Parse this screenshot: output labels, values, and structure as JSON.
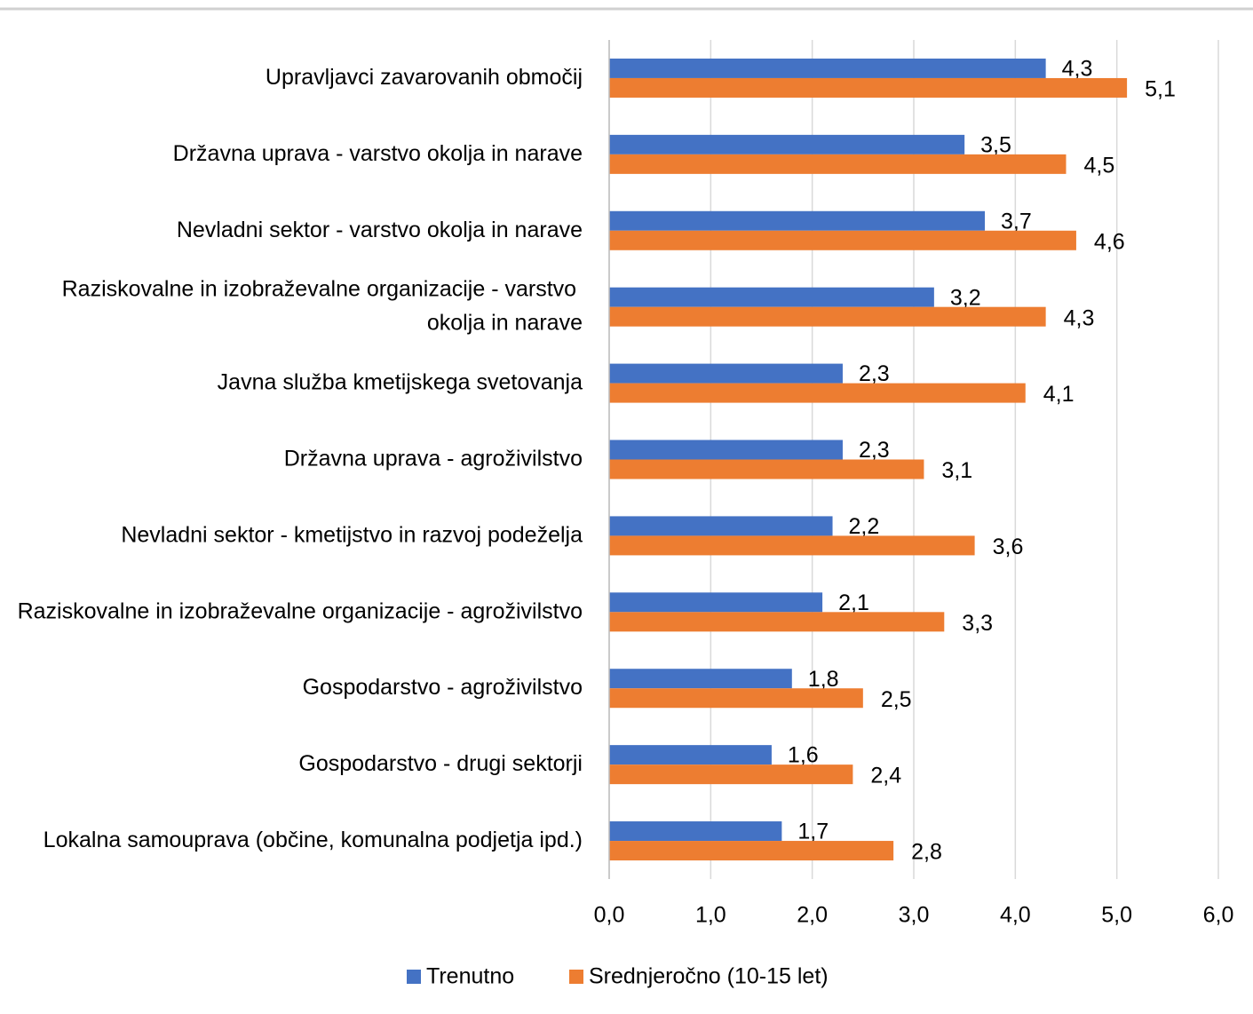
{
  "chart_data": {
    "type": "bar",
    "orientation": "horizontal",
    "categories": [
      "Upravljavci zavarovanih območij",
      "Državna uprava - varstvo okolja in narave",
      "Nevladni sektor - varstvo okolja in narave",
      "Raziskovalne in izobraževalne organizacije - varstvo okolja in narave",
      "Javna služba kmetijskega svetovanja",
      "Državna uprava - agroživilstvo",
      "Nevladni sektor - kmetijstvo in razvoj podeželja",
      "Raziskovalne in izobraževalne organizacije - agroživilstvo",
      "Gospodarstvo - agroživilstvo",
      "Gospodarstvo - drugi sektorji",
      "Lokalna samouprava (občine, komunalna podjetja ipd.)"
    ],
    "series": [
      {
        "name": "Trenutno",
        "color": "#4472c4",
        "values": [
          4.3,
          3.5,
          3.7,
          3.2,
          2.3,
          2.3,
          2.2,
          2.1,
          1.8,
          1.6,
          1.7
        ],
        "value_labels": [
          "4,3",
          "3,5",
          "3,7",
          "3,2",
          "2,3",
          "2,3",
          "2,2",
          "2,1",
          "1,8",
          "1,6",
          "1,7"
        ]
      },
      {
        "name": "Srednjeročno (10-15 let)",
        "color": "#ed7d31",
        "values": [
          5.1,
          4.5,
          4.6,
          4.3,
          4.1,
          3.1,
          3.6,
          3.3,
          2.5,
          2.4,
          2.8
        ],
        "value_labels": [
          "5,1",
          "4,5",
          "4,6",
          "4,3",
          "4,1",
          "3,1",
          "3,6",
          "3,3",
          "2,5",
          "2,4",
          "2,8"
        ]
      }
    ],
    "xlim": [
      0,
      6
    ],
    "xticks": [
      {
        "value": 0,
        "label": "0,0"
      },
      {
        "value": 1,
        "label": "1,0"
      },
      {
        "value": 2,
        "label": "2,0"
      },
      {
        "value": 3,
        "label": "3,0"
      },
      {
        "value": 4,
        "label": "4,0"
      },
      {
        "value": 5,
        "label": "5,0"
      },
      {
        "value": 6,
        "label": "6,0"
      }
    ],
    "grid": true,
    "legend": "bottom"
  }
}
